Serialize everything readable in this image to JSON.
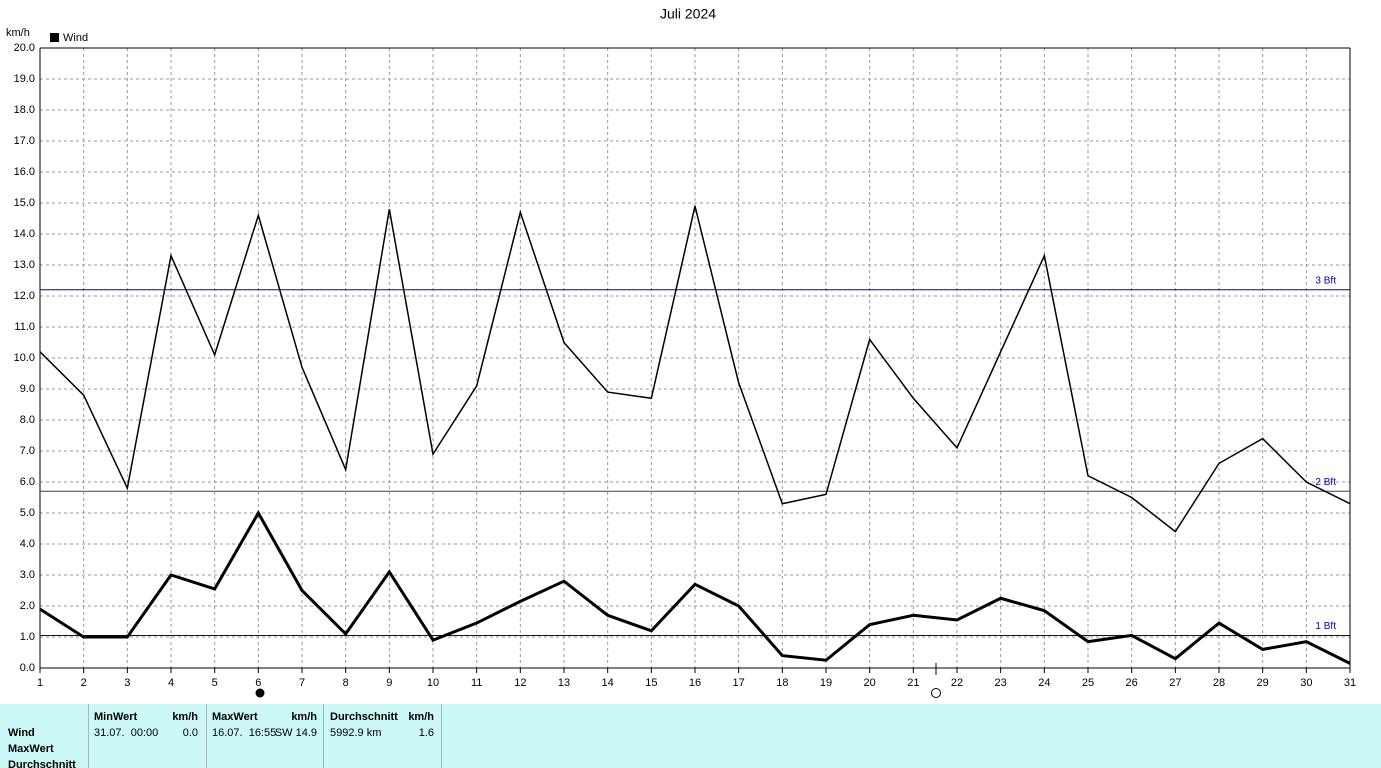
{
  "chart_data": {
    "type": "line",
    "title": "Juli 2024",
    "y_unit": "km/h",
    "categories": [
      "1",
      "2",
      "3",
      "4",
      "5",
      "6",
      "7",
      "8",
      "9",
      "10",
      "11",
      "12",
      "13",
      "14",
      "15",
      "16",
      "17",
      "18",
      "19",
      "20",
      "21",
      "22",
      "23",
      "24",
      "25",
      "26",
      "27",
      "28",
      "29",
      "30",
      "31"
    ],
    "series": [
      {
        "name": "Wind",
        "color": "#000000",
        "width": 1.5,
        "values": [
          10.2,
          8.8,
          5.8,
          13.3,
          10.1,
          14.6,
          9.7,
          6.4,
          14.8,
          6.9,
          9.1,
          14.7,
          10.5,
          8.9,
          8.7,
          14.9,
          9.2,
          5.3,
          5.6,
          10.6,
          8.7,
          7.1,
          10.2,
          13.3,
          6.2,
          5.5,
          4.4,
          6.6,
          7.4,
          6.0,
          5.3
        ]
      },
      {
        "color": "#000000",
        "width": 3,
        "values": [
          1.9,
          1.0,
          1.0,
          3.0,
          2.55,
          5.0,
          2.5,
          1.1,
          3.1,
          0.9,
          1.45,
          2.15,
          2.8,
          1.7,
          1.2,
          2.7,
          2.0,
          0.4,
          0.25,
          1.4,
          1.7,
          1.55,
          2.25,
          1.85,
          0.85,
          1.05,
          0.3,
          1.45,
          0.6,
          0.85,
          0.15
        ]
      }
    ],
    "ylim": [
      0,
      20
    ],
    "yticks": [
      {
        "value": 0,
        "label": "0.0"
      },
      {
        "value": 1,
        "label": "1.0"
      },
      {
        "value": 2,
        "label": "2.0"
      },
      {
        "value": 3,
        "label": "3.0"
      },
      {
        "value": 4,
        "label": "4.0"
      },
      {
        "value": 5,
        "label": "5.0"
      },
      {
        "value": 6,
        "label": "6.0"
      },
      {
        "value": 7,
        "label": "7.0"
      },
      {
        "value": 8,
        "label": "8.0"
      },
      {
        "value": 9,
        "label": "9.0"
      },
      {
        "value": 10,
        "label": "10.0"
      },
      {
        "value": 11,
        "label": "11.0"
      },
      {
        "value": 12,
        "label": "12.0"
      },
      {
        "value": 13,
        "label": "13.0"
      },
      {
        "value": 14,
        "label": "14.0"
      },
      {
        "value": 15,
        "label": "15.0"
      },
      {
        "value": 16,
        "label": "16.0"
      },
      {
        "value": 17,
        "label": "17.0"
      },
      {
        "value": 18,
        "label": "18.0"
      },
      {
        "value": 19,
        "label": "19.0"
      },
      {
        "value": 20,
        "label": "20.0"
      }
    ],
    "reference_lines": [
      {
        "value": 12.2,
        "label": "3 Bft",
        "color": "#0000c0"
      },
      {
        "value": 5.7,
        "label": "2 Bft",
        "color": "#404040"
      },
      {
        "value": 1.05,
        "label": "1 Bft",
        "color": "#0000c0"
      }
    ],
    "grid": true
  },
  "table": {
    "row_labels": [
      "Wind",
      "MaxWert",
      "Durchschnitt"
    ],
    "columns": [
      {
        "header": "MinWert",
        "unit": "km/h",
        "cells": [
          "31.07.  00:00",
          "0.0"
        ]
      },
      {
        "header": "MaxWert",
        "unit": "km/h",
        "cells": [
          "16.07.  16:55",
          "SW 14.9"
        ]
      },
      {
        "header": "Durchschnitt",
        "unit": "km/h",
        "cells": [
          "5992.9 km",
          "1.6"
        ]
      }
    ]
  }
}
